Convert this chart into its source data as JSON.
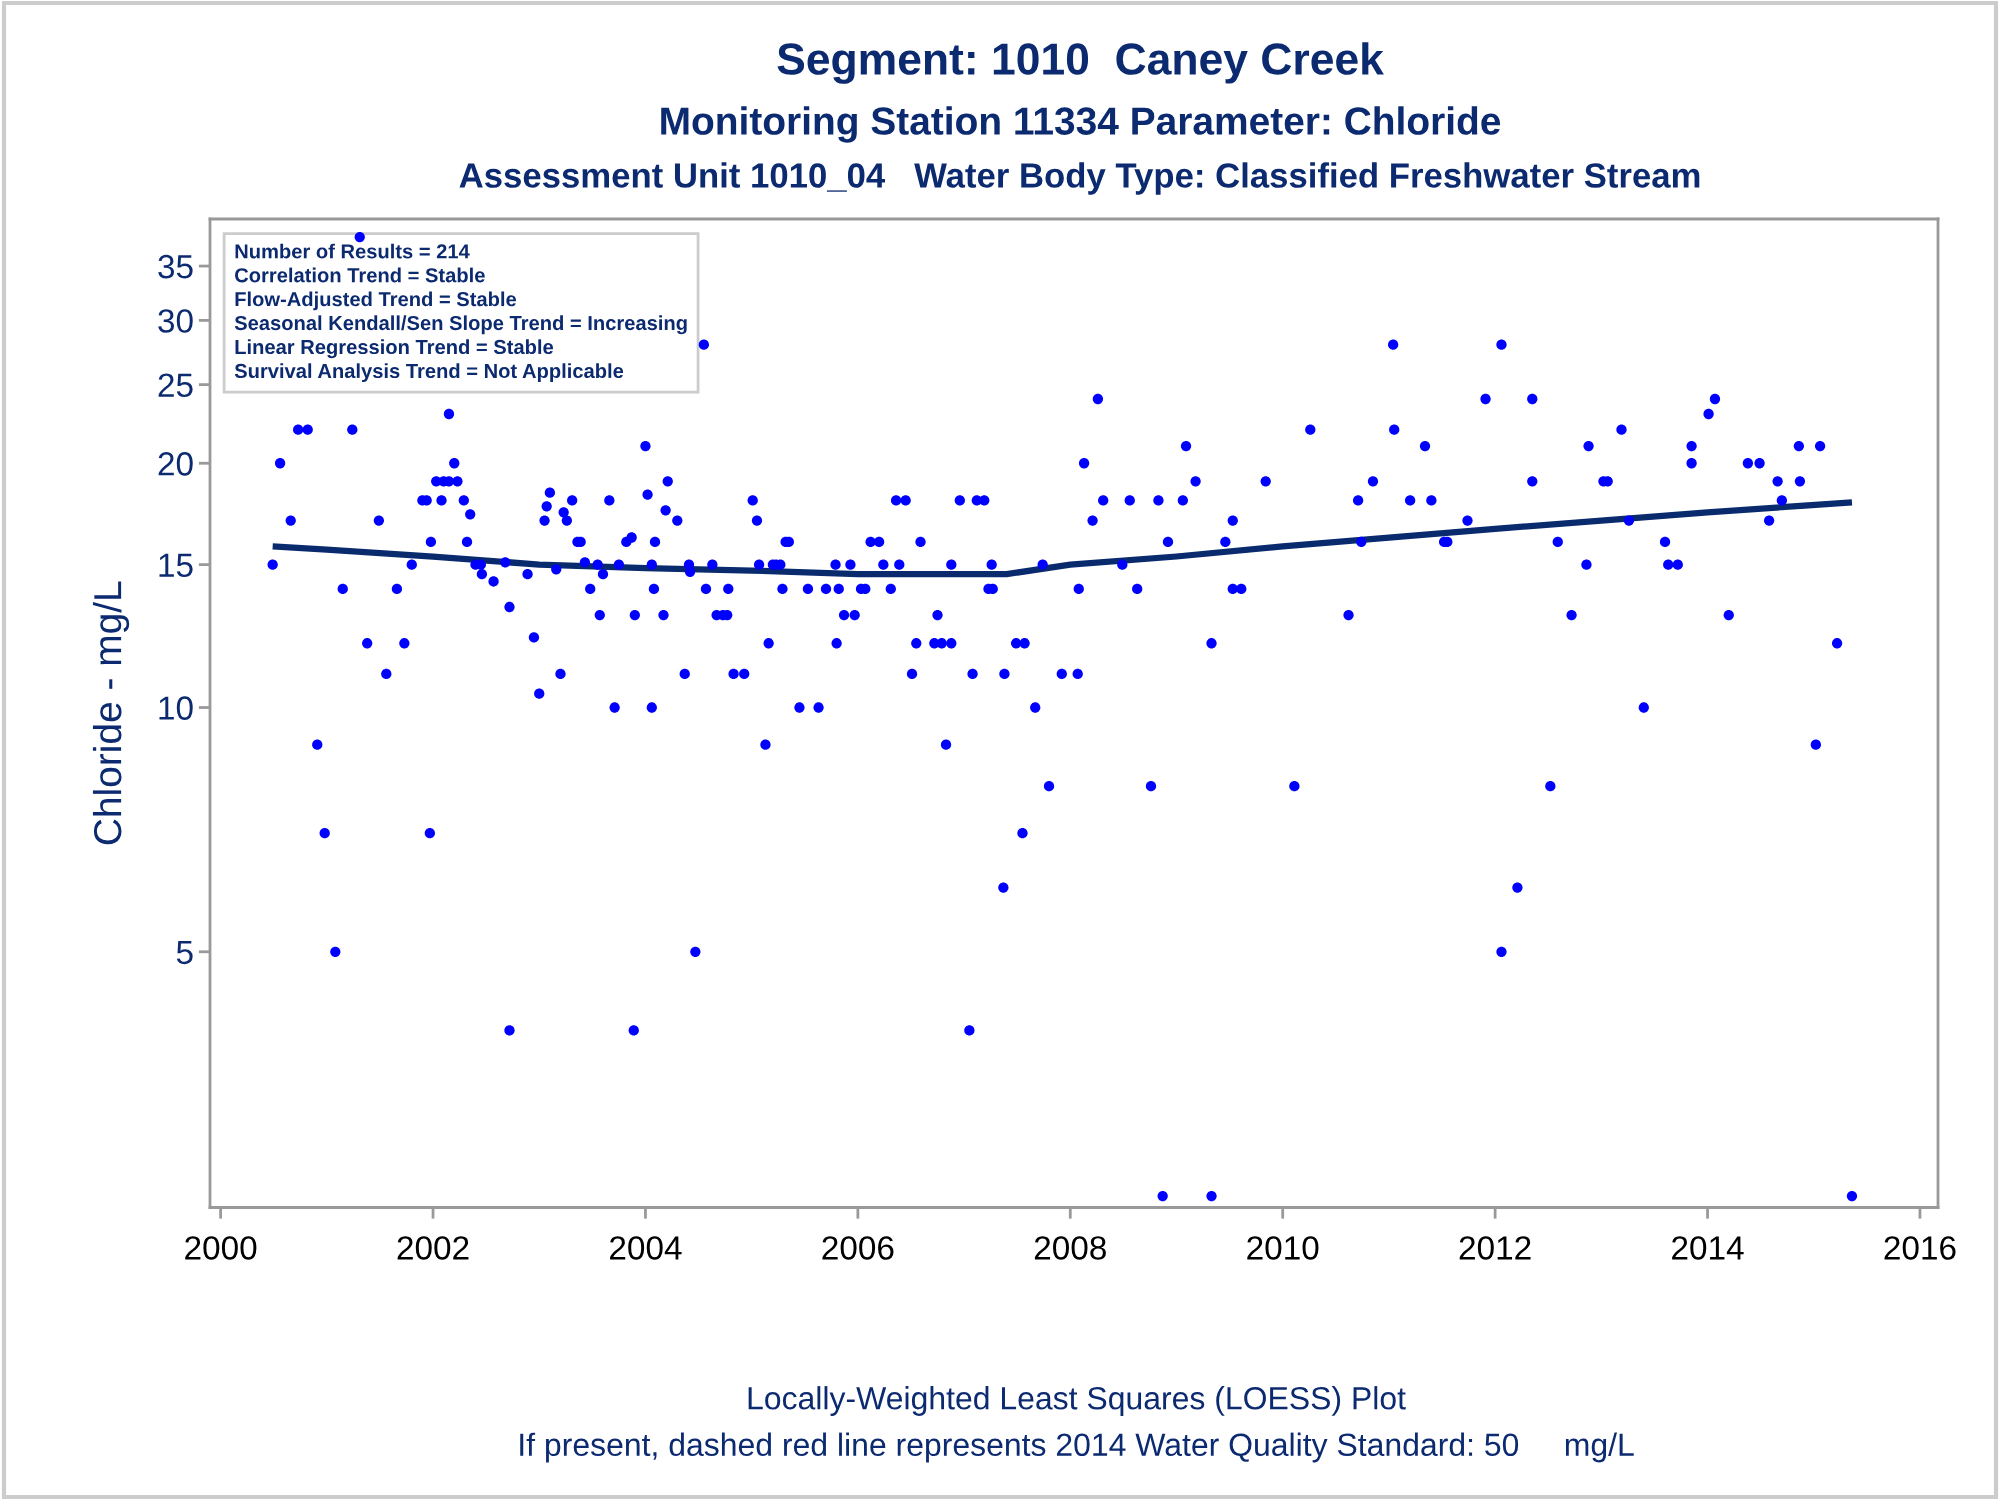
{
  "chart_data": {
    "type": "scatter",
    "title": "Segment: 1010  Caney Creek",
    "subtitle": "Monitoring Station 11334 Parameter: Chloride\nAssessment Unit 1010_04   Water Body Type: Classified Freshwater Stream",
    "ylabel": "Chloride - mg/L",
    "log": "y",
    "grid": false,
    "legend": false,
    "marker": "circle",
    "xlim": [
      1999.9,
      2016.17
    ],
    "xticks": [
      2000,
      2002,
      2004,
      2006,
      2008,
      2010,
      2012,
      2014,
      2016
    ],
    "ylim": [
      2.42,
      40
    ],
    "yticks": [
      5,
      10,
      15,
      20,
      25,
      30,
      35
    ],
    "annotations": [
      "Number of Results = 214\nCorrelation Trend = Stable\nFlow-Adjusted Trend = Stable\nSeasonal Kendall/Sen Slope Trend = Increasing\nLinear Regression Trend = Stable\nSurvival Analysis Trend = Not Applicable",
      "Locally-Weighted Least Squares (LOESS) Plot",
      "If present, dashed red line represents 2014 Water Quality Standard: 50     mg/L"
    ],
    "series": [
      {
        "color": "#0000ff",
        "x": [
          2000.49,
          2000.56,
          2000.66,
          2000.73,
          2000.82,
          2000.91,
          2000.98,
          2001.08,
          2001.15,
          2001.24,
          2001.31,
          2001.38,
          2001.49,
          2001.56,
          2001.66,
          2001.73,
          2001.8,
          2001.9,
          2001.94,
          2001.97,
          2001.98,
          2002.03,
          2002.1,
          2002.15,
          2002.08,
          2002.15,
          2002.2,
          2002.23,
          2002.29,
          2002.32,
          2002.35,
          2002.4,
          2002.45,
          2002.46,
          2002.57,
          2002.68,
          2002.72,
          2002.72,
          2002.89,
          2002.95,
          2003.0,
          2003.05,
          2003.07,
          2003.1,
          2003.16,
          2003.2,
          2003.23,
          2003.26,
          2003.31,
          2003.36,
          2003.39,
          2003.43,
          2003.48,
          2003.55,
          2003.57,
          2003.6,
          2003.66,
          2003.71,
          2003.75,
          2003.82,
          2003.87,
          2003.89,
          2003.9,
          2004.0,
          2004.02,
          2004.06,
          2004.06,
          2004.08,
          2004.09,
          2004.17,
          2004.19,
          2004.21,
          2004.3,
          2004.37,
          2004.41,
          2004.42,
          2004.47,
          2004.55,
          2004.57,
          2004.63,
          2004.67,
          2004.73,
          2004.77,
          2004.78,
          2004.83,
          2004.93,
          2005.01,
          2005.05,
          2005.07,
          2005.13,
          2005.16,
          2005.2,
          2005.23,
          2005.27,
          2005.29,
          2005.32,
          2005.35,
          2005.45,
          2005.53,
          2005.63,
          2005.7,
          2005.79,
          2005.8,
          2005.82,
          2005.87,
          2005.97,
          2005.93,
          2006.03,
          2006.07,
          2006.12,
          2006.2,
          2006.24,
          2006.31,
          2006.36,
          2006.45,
          2006.39,
          2006.51,
          2006.55,
          2006.59,
          2006.72,
          2006.75,
          2006.79,
          2006.88,
          2006.83,
          2006.88,
          2006.96,
          2007.05,
          2007.08,
          2007.12,
          2007.19,
          2007.23,
          2007.27,
          2007.26,
          2007.37,
          2007.38,
          2007.49,
          2007.57,
          2007.55,
          2007.67,
          2007.74,
          2007.8,
          2007.92,
          2008.07,
          2008.08,
          2008.13,
          2008.21,
          2008.26,
          2008.31,
          2008.49,
          2008.56,
          2008.63,
          2008.76,
          2008.83,
          2008.87,
          2008.92,
          2009.06,
          2009.09,
          2009.18,
          2009.33,
          2009.33,
          2009.46,
          2009.53,
          2009.53,
          2009.61,
          2009.84,
          2010.11,
          2010.26,
          2010.62,
          2010.71,
          2010.74,
          2010.85,
          2011.04,
          2011.05,
          2011.2,
          2011.34,
          2011.4,
          2011.52,
          2011.55,
          2011.74,
          2011.91,
          2012.06,
          2012.06,
          2012.21,
          2012.35,
          2012.35,
          2012.52,
          2012.59,
          2012.72,
          2012.86,
          2012.88,
          2013.02,
          2013.06,
          2013.19,
          2013.26,
          2013.4,
          2013.6,
          2013.63,
          2013.72,
          2013.85,
          2013.85,
          2014.01,
          2014.07,
          2014.2,
          2014.38,
          2014.49,
          2014.58,
          2014.66,
          2014.7,
          2014.86,
          2014.87,
          2015.02,
          2015.06,
          2015.22,
          2015.36
        ],
        "values": [
          15,
          20,
          17,
          22,
          22,
          9,
          7,
          5,
          14,
          22,
          38,
          12,
          17,
          11,
          14,
          12,
          15,
          18,
          18,
          7,
          16,
          19,
          19,
          19,
          18,
          23,
          20,
          19,
          18,
          16,
          17.3,
          15,
          15,
          14.6,
          14.3,
          15.1,
          13.3,
          4,
          14.6,
          12.2,
          10.4,
          17,
          17.7,
          18.4,
          14.8,
          11,
          17.4,
          17,
          18,
          16,
          16,
          15.1,
          14,
          15,
          13,
          14.6,
          18,
          10,
          15,
          16,
          16.2,
          4,
          13,
          21,
          18.3,
          15,
          10,
          14,
          16,
          13,
          17.5,
          19,
          17,
          11,
          15,
          14.7,
          5,
          28,
          14,
          15,
          13,
          13,
          13,
          14,
          11,
          11,
          18,
          17,
          15,
          9,
          12,
          15,
          15,
          15,
          14,
          16,
          16,
          10,
          14,
          10,
          14,
          15,
          12,
          14,
          13,
          13,
          15,
          14,
          14,
          16,
          16,
          15,
          14,
          18,
          18,
          15,
          11,
          12,
          16,
          12,
          13,
          12,
          12,
          9,
          15,
          18,
          4,
          11,
          18,
          18,
          14,
          14,
          15,
          6,
          11,
          12,
          12,
          7,
          10,
          15,
          8,
          11,
          11,
          14,
          20,
          17,
          24,
          18,
          15,
          18,
          14,
          8,
          18,
          2.5,
          16,
          18,
          21,
          19,
          12,
          2.5,
          16,
          17,
          14,
          14,
          19,
          8,
          22,
          13,
          18,
          16,
          19,
          28,
          22,
          18,
          21,
          18,
          16,
          16,
          17,
          24,
          28,
          5,
          6,
          24,
          19,
          8,
          16,
          13,
          15,
          21,
          19,
          19,
          22,
          17,
          10,
          16,
          15,
          15,
          21,
          20,
          23,
          24,
          13,
          20,
          20,
          17,
          19,
          18,
          21,
          19,
          9,
          21,
          12,
          2.5
        ]
      },
      {
        "type": "line",
        "color": "#0a2a6e",
        "line_style": "solid",
        "marker": "none",
        "x": [
          2000.49,
          2001,
          2002,
          2003,
          2004,
          2005,
          2006,
          2006.5,
          2007,
          2007.4,
          2008,
          2009,
          2010,
          2011,
          2012,
          2013,
          2014,
          2015.36
        ],
        "values": [
          15.8,
          15.65,
          15.35,
          15.0,
          14.85,
          14.75,
          14.6,
          14.6,
          14.6,
          14.6,
          15.0,
          15.35,
          15.8,
          16.2,
          16.6,
          17.0,
          17.4,
          17.9
        ]
      }
    ]
  }
}
